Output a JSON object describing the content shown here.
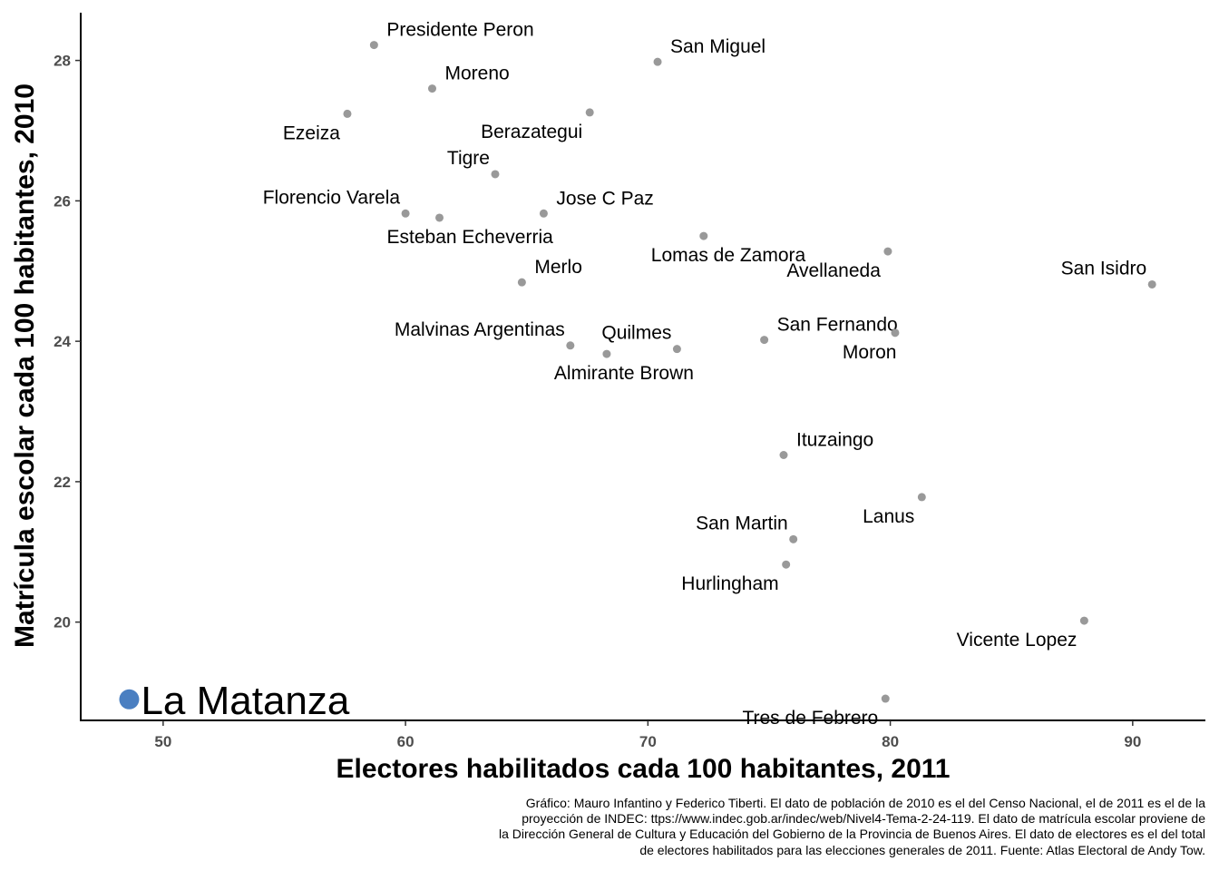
{
  "chart_data": {
    "type": "scatter",
    "title": "",
    "xlabel": "Electores habilitados cada 100 habitantes, 2011",
    "ylabel": "Matrícula escolar cada 100 habitantes, 2010",
    "xlim": [
      46.6,
      93.0
    ],
    "ylim": [
      18.6,
      28.68
    ],
    "x_ticks": [
      50,
      60,
      70,
      80,
      90
    ],
    "y_ticks": [
      20,
      22,
      24,
      26,
      28
    ],
    "grid": false,
    "point_color": "#999999",
    "highlight_color": "#4a7fc1",
    "points": [
      {
        "label": "Presidente Peron",
        "x": 58.7,
        "y": 28.22,
        "label_pos": "above-right"
      },
      {
        "label": "San Miguel",
        "x": 70.4,
        "y": 27.98,
        "label_pos": "above-right"
      },
      {
        "label": "Moreno",
        "x": 61.1,
        "y": 27.6,
        "label_pos": "above-right"
      },
      {
        "label": "Ezeiza",
        "x": 57.6,
        "y": 27.24,
        "label_pos": "below-left"
      },
      {
        "label": "Berazategui",
        "x": 67.6,
        "y": 27.26,
        "label_pos": "below-left"
      },
      {
        "label": "Tigre",
        "x": 63.7,
        "y": 26.38,
        "label_pos": "above-left"
      },
      {
        "label": "Florencio Varela",
        "x": 60.0,
        "y": 25.82,
        "label_pos": "above-left"
      },
      {
        "label": "Esteban Echeverria",
        "x": 61.4,
        "y": 25.76,
        "label_pos": "below-right"
      },
      {
        "label": "Jose C Paz",
        "x": 65.7,
        "y": 25.82,
        "label_pos": "above-right"
      },
      {
        "label": "Lomas de Zamora",
        "x": 72.3,
        "y": 25.5,
        "label_pos": "below-right"
      },
      {
        "label": "Avellaneda",
        "x": 79.9,
        "y": 25.28,
        "label_pos": "below-left"
      },
      {
        "label": "San Isidro",
        "x": 90.8,
        "y": 24.81,
        "label_pos": "above-left"
      },
      {
        "label": "Merlo",
        "x": 64.8,
        "y": 24.84,
        "label_pos": "above-right"
      },
      {
        "label": "Malvinas Argentinas",
        "x": 66.8,
        "y": 23.94,
        "label_pos": "above-left"
      },
      {
        "label": "Almirante Brown",
        "x": 68.3,
        "y": 23.82,
        "label_pos": "below-right"
      },
      {
        "label": "Quilmes",
        "x": 71.2,
        "y": 23.89,
        "label_pos": "above-left"
      },
      {
        "label": "San Fernando",
        "x": 74.8,
        "y": 24.02,
        "label_pos": "above-right"
      },
      {
        "label": "Moron",
        "x": 80.2,
        "y": 24.12,
        "label_pos": "below-right"
      },
      {
        "label": "Ituzaingo",
        "x": 75.6,
        "y": 22.38,
        "label_pos": "above-right"
      },
      {
        "label": "Lanus",
        "x": 81.3,
        "y": 21.78,
        "label_pos": "below-left"
      },
      {
        "label": "San Martin",
        "x": 76.0,
        "y": 21.18,
        "label_pos": "above-left"
      },
      {
        "label": "Hurlingham",
        "x": 75.7,
        "y": 20.82,
        "label_pos": "below-left"
      },
      {
        "label": "Vicente Lopez",
        "x": 88.0,
        "y": 20.02,
        "label_pos": "below-left"
      },
      {
        "label": "Tres de Febrero",
        "x": 79.8,
        "y": 18.91,
        "label_pos": "below-left"
      }
    ],
    "highlight": {
      "label": "La Matanza",
      "x": 48.6,
      "y": 18.9
    },
    "caption": [
      "Gráfico: Mauro Infantino y Federico Tiberti. El dato de población de 2010 es el del Censo Nacional, el de 2011 es el de la",
      "proyección de INDEC: ttps://www.indec.gob.ar/indec/web/Nivel4-Tema-2-24-119. El dato de matrícula escolar proviene de",
      "la Dirección General de Cultura y Educación del Gobierno de la Provincia de Buenos Aires. El dato de electores es el del total",
      "de electores habilitados para las elecciones generales de 2011. Fuente: Atlas Electoral de Andy Tow."
    ]
  }
}
